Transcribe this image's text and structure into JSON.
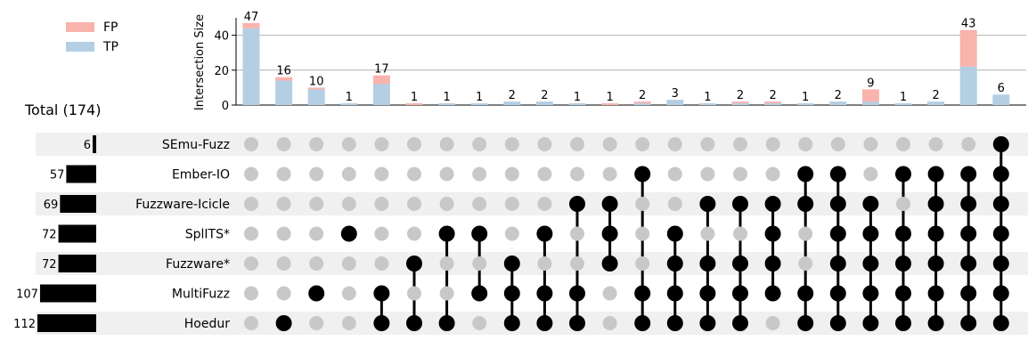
{
  "chart_data": {
    "type": "upset",
    "total_label": "Total (174)",
    "y_label": "Intersection Size",
    "y_ticks": [
      0,
      20,
      40
    ],
    "ylim": [
      0,
      50
    ],
    "legend": {
      "placement": "top-left",
      "entries": [
        {
          "name": "FP",
          "color": "#f9b3ad"
        },
        {
          "name": "TP",
          "color": "#b4cfe4"
        }
      ]
    },
    "sets": [
      {
        "name": "SEmu-Fuzz",
        "size": 6
      },
      {
        "name": "Ember-IO",
        "size": 57
      },
      {
        "name": "Fuzzware-Icicle",
        "size": 69
      },
      {
        "name": "SplITS*",
        "size": 72
      },
      {
        "name": "Fuzzware*",
        "size": 72
      },
      {
        "name": "MultiFuzz",
        "size": 107
      },
      {
        "name": "Hoedur",
        "size": 112
      }
    ],
    "set_size_max": 112,
    "intersections": [
      {
        "total": 47,
        "tp": 44,
        "fp": 3,
        "members": [
          "SEmu-Fuzz",
          "Ember-IO",
          "Fuzzware-Icicle",
          "SplITS*",
          "Fuzzware*",
          "MultiFuzz",
          "Hoedur"
        ],
        "active": []
      },
      {
        "total": 16,
        "tp": 14,
        "fp": 2,
        "members": [],
        "active": [
          "Hoedur"
        ]
      },
      {
        "total": 10,
        "tp": 9,
        "fp": 1,
        "members": [],
        "active": [
          "MultiFuzz"
        ]
      },
      {
        "total": 1,
        "tp": 1,
        "fp": 0,
        "members": [],
        "active": [
          "SplITS*"
        ]
      },
      {
        "total": 17,
        "tp": 12,
        "fp": 5,
        "members": [],
        "active": [
          "MultiFuzz",
          "Hoedur"
        ]
      },
      {
        "total": 1,
        "tp": 0,
        "fp": 1,
        "members": [],
        "active": [
          "Fuzzware*",
          "Hoedur"
        ]
      },
      {
        "total": 1,
        "tp": 1,
        "fp": 0,
        "members": [],
        "active": [
          "SplITS*",
          "Hoedur"
        ]
      },
      {
        "total": 1,
        "tp": 1,
        "fp": 0,
        "members": [],
        "active": [
          "SplITS*",
          "MultiFuzz"
        ]
      },
      {
        "total": 2,
        "tp": 2,
        "fp": 0,
        "members": [],
        "active": [
          "Fuzzware*",
          "MultiFuzz",
          "Hoedur"
        ]
      },
      {
        "total": 2,
        "tp": 2,
        "fp": 0,
        "members": [],
        "active": [
          "SplITS*",
          "MultiFuzz",
          "Hoedur"
        ]
      },
      {
        "total": 1,
        "tp": 1,
        "fp": 0,
        "members": [],
        "active": [
          "Fuzzware-Icicle",
          "MultiFuzz",
          "Hoedur"
        ]
      },
      {
        "total": 1,
        "tp": 0,
        "fp": 1,
        "members": [],
        "active": [
          "Fuzzware-Icicle",
          "SplITS*",
          "Fuzzware*"
        ]
      },
      {
        "total": 2,
        "tp": 1,
        "fp": 1,
        "members": [],
        "active": [
          "Ember-IO",
          "MultiFuzz",
          "Hoedur"
        ]
      },
      {
        "total": 3,
        "tp": 3,
        "fp": 0,
        "members": [],
        "active": [
          "SplITS*",
          "Fuzzware*",
          "MultiFuzz",
          "Hoedur"
        ]
      },
      {
        "total": 1,
        "tp": 1,
        "fp": 0,
        "members": [],
        "active": [
          "Fuzzware-Icicle",
          "Fuzzware*",
          "MultiFuzz",
          "Hoedur"
        ]
      },
      {
        "total": 2,
        "tp": 1,
        "fp": 1,
        "members": [],
        "active": [
          "Fuzzware-Icicle",
          "Fuzzware*",
          "MultiFuzz",
          "Hoedur"
        ]
      },
      {
        "total": 2,
        "tp": 1,
        "fp": 1,
        "members": [],
        "active": [
          "Fuzzware-Icicle",
          "SplITS*",
          "Fuzzware*",
          "MultiFuzz"
        ]
      },
      {
        "total": 1,
        "tp": 1,
        "fp": 0,
        "members": [],
        "active": [
          "Ember-IO",
          "Fuzzware-Icicle",
          "MultiFuzz",
          "Hoedur"
        ]
      },
      {
        "total": 2,
        "tp": 2,
        "fp": 0,
        "members": [],
        "active": [
          "Ember-IO",
          "Fuzzware-Icicle",
          "SplITS*",
          "Fuzzware*",
          "MultiFuzz",
          "Hoedur"
        ]
      },
      {
        "total": 9,
        "tp": 2,
        "fp": 7,
        "members": [],
        "active": [
          "Fuzzware-Icicle",
          "SplITS*",
          "Fuzzware*",
          "MultiFuzz",
          "Hoedur"
        ]
      },
      {
        "total": 1,
        "tp": 1,
        "fp": 0,
        "members": [],
        "active": [
          "Ember-IO",
          "SplITS*",
          "Fuzzware*",
          "MultiFuzz",
          "Hoedur"
        ]
      },
      {
        "total": 2,
        "tp": 2,
        "fp": 0,
        "members": [],
        "active": [
          "Ember-IO",
          "Fuzzware-Icicle",
          "SplITS*",
          "Fuzzware*",
          "MultiFuzz",
          "Hoedur"
        ]
      },
      {
        "total": 43,
        "tp": 22,
        "fp": 21,
        "members": [],
        "active": [
          "Ember-IO",
          "Fuzzware-Icicle",
          "SplITS*",
          "Fuzzware*",
          "MultiFuzz",
          "Hoedur"
        ]
      },
      {
        "total": 6,
        "tp": 6,
        "fp": 0,
        "members": [],
        "active": [
          "SEmu-Fuzz",
          "Ember-IO",
          "Fuzzware-Icicle",
          "SplITS*",
          "Fuzzware*",
          "MultiFuzz",
          "Hoedur"
        ]
      }
    ]
  }
}
